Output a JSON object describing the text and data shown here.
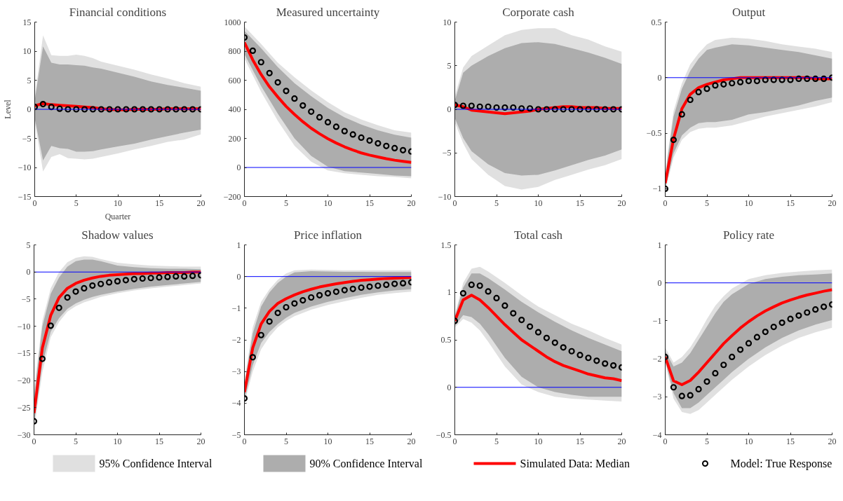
{
  "chart_data": [
    {
      "type": "line",
      "title": "Financial conditions",
      "xlabel": "Quarter",
      "ylabel": "Level",
      "xlim": [
        0,
        20
      ],
      "xticks": [
        0,
        5,
        10,
        15,
        20
      ],
      "ylim": [
        -15,
        15
      ],
      "yticks": [
        -15,
        -10,
        -5,
        0,
        5,
        10,
        15
      ],
      "grid": false,
      "legend": "bottom",
      "ref_lines": [
        {
          "axis": "y",
          "value": 0,
          "color": "#0000ff"
        }
      ],
      "series": [
        {
          "name": "95% Confidence Interval",
          "type": "area",
          "color": "#e0e0e0",
          "x": [
            0,
            1,
            2,
            3,
            4,
            5,
            6,
            7,
            8,
            10,
            12,
            14,
            16,
            18,
            20
          ],
          "values": [
            null,
            null,
            null,
            null,
            null,
            null,
            null,
            null,
            null,
            null,
            null,
            null,
            null,
            null,
            null
          ],
          "lower": [
            -2,
            -10.7,
            -8.2,
            -7.7,
            -8.4,
            -8.5,
            -8.6,
            -8.5,
            -8.2,
            -7.6,
            -6.9,
            -6.3,
            -5.6,
            -5.2,
            -4.3
          ],
          "upper": [
            2,
            12.7,
            9.3,
            9.2,
            9.2,
            9.4,
            9.2,
            8.8,
            8.2,
            7.5,
            6.8,
            6,
            5.3,
            4.5,
            3.9
          ]
        },
        {
          "name": "90% Confidence Interval",
          "type": "area",
          "color": "#adadad",
          "x": [
            0,
            1,
            2,
            3,
            4,
            5,
            6,
            7,
            8,
            10,
            12,
            14,
            16,
            18,
            20
          ],
          "values": [
            null,
            null,
            null,
            null,
            null,
            null,
            null,
            null,
            null,
            null,
            null,
            null,
            null,
            null,
            null
          ],
          "lower": [
            -1.5,
            -8.8,
            -6.3,
            -6.7,
            -6.8,
            -7.3,
            -7.3,
            -7.2,
            -6.9,
            -6.4,
            -5.9,
            -5.2,
            -4.6,
            -4,
            -3.5
          ],
          "upper": [
            1.5,
            10.8,
            8,
            7.7,
            7.7,
            7.6,
            7.5,
            7.2,
            7,
            6.3,
            5.6,
            4.8,
            4.2,
            3.7,
            3.2
          ]
        },
        {
          "name": "Simulated Data: Median",
          "color": "#ff0000",
          "x": [
            0,
            1,
            2,
            3,
            4,
            5,
            6,
            7,
            8,
            9,
            10,
            11,
            12,
            13,
            14,
            15,
            16,
            17,
            18,
            19,
            20
          ],
          "values": [
            0.6,
            1.0,
            0.8,
            0.7,
            0.6,
            0.5,
            0.4,
            0.3,
            0.1,
            0,
            -0.1,
            -0.1,
            0,
            0,
            0,
            0,
            0.1,
            0.1,
            0.1,
            0.1,
            0.1
          ]
        },
        {
          "name": "Model: True Response",
          "type": "scatter",
          "marker": "circle",
          "color": "#000000",
          "x": [
            0,
            1,
            2,
            3,
            4,
            5,
            6,
            7,
            8,
            9,
            10,
            11,
            12,
            13,
            14,
            15,
            16,
            17,
            18,
            19,
            20
          ],
          "values": [
            0.4,
            0.9,
            0.4,
            0.1,
            0,
            0,
            0,
            0,
            0,
            0,
            0,
            0,
            0,
            0,
            0,
            0,
            0,
            0,
            0,
            0,
            0
          ]
        }
      ]
    },
    {
      "type": "line",
      "title": "Measured uncertainty",
      "xlim": [
        0,
        20
      ],
      "xticks": [
        0,
        5,
        10,
        15,
        20
      ],
      "ylim": [
        -200,
        1000
      ],
      "yticks": [
        -200,
        0,
        200,
        400,
        600,
        800,
        1000
      ],
      "grid": false,
      "ref_lines": [
        {
          "axis": "y",
          "value": 0,
          "color": "#0000ff"
        }
      ],
      "series": [
        {
          "type": "area",
          "color": "#e0e0e0",
          "x": [
            0,
            2,
            4,
            6,
            8,
            10,
            12,
            14,
            16,
            18,
            20
          ],
          "values": [
            null,
            null,
            null,
            null,
            null,
            null,
            null,
            null,
            null,
            null,
            null
          ],
          "lower": [
            750,
            520,
            320,
            150,
            40,
            -20,
            -40,
            -50,
            -60,
            -65,
            -75
          ],
          "upper": [
            970,
            850,
            720,
            620,
            530,
            450,
            380,
            330,
            290,
            255,
            240
          ]
        },
        {
          "type": "area",
          "color": "#adadad",
          "x": [
            0,
            2,
            4,
            6,
            8,
            10,
            12,
            14,
            16,
            18,
            20
          ],
          "values": [
            null,
            null,
            null,
            null,
            null,
            null,
            null,
            null,
            null,
            null,
            null
          ],
          "lower": [
            780,
            560,
            370,
            200,
            80,
            5,
            -25,
            -35,
            -45,
            -55,
            -60
          ],
          "upper": [
            940,
            820,
            690,
            580,
            490,
            410,
            345,
            295,
            255,
            225,
            205
          ]
        },
        {
          "color": "#ff0000",
          "x": [
            0,
            1,
            2,
            3,
            4,
            5,
            6,
            7,
            8,
            9,
            10,
            11,
            12,
            13,
            14,
            15,
            16,
            17,
            18,
            19,
            20
          ],
          "values": [
            860,
            740,
            640,
            555,
            485,
            420,
            365,
            315,
            270,
            232,
            198,
            168,
            142,
            120,
            100,
            85,
            72,
            60,
            50,
            42,
            35
          ]
        },
        {
          "type": "scatter",
          "marker": "circle",
          "color": "#000000",
          "x": [
            0,
            1,
            2,
            3,
            4,
            5,
            6,
            7,
            8,
            9,
            10,
            11,
            12,
            13,
            14,
            15,
            16,
            17,
            18,
            19,
            20
          ],
          "values": [
            894,
            803,
            724,
            649,
            585,
            526,
            474,
            426,
            384,
            345,
            311,
            280,
            250,
            227,
            205,
            185,
            166,
            148,
            133,
            119,
            110
          ]
        }
      ]
    },
    {
      "type": "line",
      "title": "Corporate cash",
      "xlim": [
        0,
        20
      ],
      "xticks": [
        0,
        5,
        10,
        15,
        20
      ],
      "ylim": [
        -10,
        10
      ],
      "yticks": [
        -10,
        -5,
        0,
        5,
        10
      ],
      "grid": false,
      "ref_lines": [
        {
          "axis": "y",
          "value": 0,
          "color": "#0000ff"
        }
      ],
      "series": [
        {
          "type": "area",
          "color": "#e0e0e0",
          "x": [
            0,
            1,
            2,
            4,
            6,
            8,
            10,
            12,
            14,
            16,
            18,
            20
          ],
          "values": [
            null,
            null,
            null,
            null,
            null,
            null,
            null,
            null,
            null,
            null,
            null,
            null
          ],
          "lower": [
            -1.5,
            -3.9,
            -5.7,
            -7.5,
            -8.8,
            -9.2,
            -8.9,
            -8.1,
            -7.5,
            -6.9,
            -6.4,
            -5.7
          ],
          "upper": [
            1.5,
            4.8,
            6.1,
            7.3,
            8.5,
            9.1,
            9.3,
            9.3,
            8.5,
            8,
            7.2,
            6.6
          ]
        },
        {
          "type": "area",
          "color": "#adadad",
          "x": [
            0,
            1,
            2,
            4,
            6,
            8,
            10,
            12,
            14,
            16,
            18,
            20
          ],
          "values": [
            null,
            null,
            null,
            null,
            null,
            null,
            null,
            null,
            null,
            null,
            null,
            null
          ],
          "lower": [
            -1,
            -3.3,
            -4.8,
            -6.3,
            -7.3,
            -7.6,
            -7.5,
            -7,
            -6.4,
            -5.8,
            -5.3,
            -4.6
          ],
          "upper": [
            1,
            4.2,
            5,
            6.1,
            7,
            7.6,
            7.7,
            7.5,
            7,
            6.5,
            5.9,
            5.2
          ]
        },
        {
          "color": "#ff0000",
          "x": [
            0,
            1,
            2,
            3,
            4,
            5,
            6,
            7,
            8,
            9,
            10,
            11,
            12,
            13,
            14,
            15,
            16,
            17,
            18,
            19,
            20
          ],
          "values": [
            0.5,
            0.3,
            -0.1,
            -0.2,
            -0.3,
            -0.4,
            -0.5,
            -0.4,
            -0.3,
            -0.2,
            0,
            0.1,
            0.2,
            0.3,
            0.3,
            0.2,
            0.2,
            0.2,
            0.1,
            0.1,
            0.1
          ]
        },
        {
          "type": "scatter",
          "marker": "circle",
          "color": "#000000",
          "x": [
            0,
            1,
            2,
            3,
            4,
            5,
            6,
            7,
            8,
            9,
            10,
            11,
            12,
            13,
            14,
            15,
            16,
            17,
            18,
            19,
            20
          ],
          "values": [
            0.5,
            0.4,
            0.4,
            0.3,
            0.3,
            0.2,
            0.2,
            0.2,
            0.1,
            0.1,
            0,
            0,
            0,
            0,
            0,
            0,
            0,
            0,
            0,
            0,
            0
          ]
        }
      ]
    },
    {
      "type": "line",
      "title": "Output",
      "xlim": [
        0,
        20
      ],
      "xticks": [
        0,
        5,
        10,
        15,
        20
      ],
      "ylim": [
        -1.07,
        0.5
      ],
      "yticks": [
        -1,
        -0.5,
        0,
        0.5
      ],
      "grid": false,
      "ref_lines": [
        {
          "axis": "y",
          "value": 0,
          "color": "#0000ff"
        }
      ],
      "series": [
        {
          "type": "area",
          "color": "#e0e0e0",
          "x": [
            0,
            1,
            2,
            3,
            4,
            5,
            6,
            8,
            10,
            12,
            14,
            16,
            18,
            20
          ],
          "values": [
            null,
            null,
            null,
            null,
            null,
            null,
            null,
            null,
            null,
            null,
            null,
            null,
            null,
            null
          ],
          "lower": [
            -1.02,
            -0.72,
            -0.56,
            -0.49,
            -0.46,
            -0.45,
            -0.45,
            -0.43,
            -0.39,
            -0.35,
            -0.32,
            -0.29,
            -0.26,
            -0.22
          ],
          "upper": [
            -0.85,
            -0.3,
            -0.05,
            0.12,
            0.22,
            0.3,
            0.34,
            0.36,
            0.35,
            0.33,
            0.3,
            0.28,
            0.26,
            0.23
          ]
        },
        {
          "type": "area",
          "color": "#adadad",
          "x": [
            0,
            1,
            2,
            3,
            4,
            5,
            6,
            8,
            10,
            12,
            14,
            16,
            18,
            20
          ],
          "values": [
            null,
            null,
            null,
            null,
            null,
            null,
            null,
            null,
            null,
            null,
            null,
            null,
            null,
            null
          ],
          "lower": [
            -1.0,
            -0.68,
            -0.52,
            -0.45,
            -0.41,
            -0.4,
            -0.4,
            -0.38,
            -0.33,
            -0.31,
            -0.28,
            -0.25,
            -0.21,
            -0.18
          ],
          "upper": [
            -0.88,
            -0.35,
            -0.1,
            0.06,
            0.17,
            0.25,
            0.27,
            0.3,
            0.29,
            0.27,
            0.25,
            0.23,
            0.2,
            0.17
          ]
        },
        {
          "color": "#ff0000",
          "x": [
            0,
            1,
            2,
            3,
            4,
            5,
            6,
            7,
            8,
            9,
            10,
            11,
            12,
            13,
            14,
            15,
            16,
            17,
            18,
            19,
            20
          ],
          "values": [
            -0.95,
            -0.55,
            -0.28,
            -0.15,
            -0.09,
            -0.06,
            -0.04,
            -0.02,
            -0.01,
            0,
            0,
            0,
            0,
            0,
            0,
            0,
            0,
            0,
            -0.01,
            -0.01,
            -0.01
          ]
        },
        {
          "type": "scatter",
          "marker": "circle",
          "color": "#000000",
          "x": [
            0,
            1,
            2,
            3,
            4,
            5,
            6,
            7,
            8,
            9,
            10,
            11,
            12,
            13,
            14,
            15,
            16,
            17,
            18,
            19,
            20
          ],
          "values": [
            -1.0,
            -0.56,
            -0.33,
            -0.2,
            -0.13,
            -0.1,
            -0.07,
            -0.06,
            -0.05,
            -0.04,
            -0.03,
            -0.03,
            -0.02,
            -0.02,
            -0.02,
            -0.02,
            -0.01,
            -0.01,
            -0.01,
            -0.01,
            0
          ]
        }
      ]
    },
    {
      "type": "line",
      "title": "Shadow values",
      "xlim": [
        0,
        20
      ],
      "xticks": [
        0,
        5,
        10,
        15,
        20
      ],
      "ylim": [
        -30,
        5
      ],
      "yticks": [
        -30,
        -25,
        -20,
        -15,
        -10,
        -5,
        0,
        5
      ],
      "grid": false,
      "ref_lines": [
        {
          "axis": "y",
          "value": 0,
          "color": "#0000ff"
        }
      ],
      "series": [
        {
          "type": "area",
          "color": "#e0e0e0",
          "x": [
            0,
            1,
            2,
            3,
            4,
            5,
            6,
            7,
            8,
            10,
            12,
            14,
            16,
            18,
            20
          ],
          "values": [
            null,
            null,
            null,
            null,
            null,
            null,
            null,
            null,
            null,
            null,
            null,
            null,
            null,
            null,
            null
          ],
          "lower": [
            -29,
            -18.5,
            -12,
            -9.2,
            -7.3,
            -6.3,
            -5.6,
            -5.1,
            -4.6,
            -3.9,
            -3.4,
            -3.0,
            -2.7,
            -2.4,
            -2.1
          ],
          "upper": [
            -22,
            -9,
            -3,
            0,
            1.8,
            2.6,
            2.9,
            2.8,
            2.4,
            1.7,
            1.4,
            1.2,
            1.1,
            1,
            1
          ]
        },
        {
          "type": "area",
          "color": "#adadad",
          "x": [
            0,
            1,
            2,
            3,
            4,
            5,
            6,
            7,
            8,
            10,
            12,
            14,
            16,
            18,
            20
          ],
          "values": [
            null,
            null,
            null,
            null,
            null,
            null,
            null,
            null,
            null,
            null,
            null,
            null,
            null,
            null,
            null
          ],
          "lower": [
            -28,
            -17,
            -11,
            -8.5,
            -6.8,
            -5.8,
            -5.1,
            -4.6,
            -4.2,
            -3.6,
            -3.1,
            -2.7,
            -2.4,
            -2.1,
            -1.8
          ],
          "upper": [
            -23,
            -10,
            -4,
            -1,
            1,
            2,
            2.3,
            2.3,
            2.0,
            1.2,
            0.9,
            0.7,
            0.6,
            0.6,
            0.5
          ]
        },
        {
          "color": "#ff0000",
          "x": [
            0,
            1,
            2,
            3,
            4,
            5,
            6,
            7,
            8,
            9,
            10,
            11,
            12,
            13,
            14,
            15,
            16,
            17,
            18,
            19,
            20
          ],
          "values": [
            -26,
            -14,
            -8,
            -4.7,
            -3,
            -2.1,
            -1.5,
            -1.1,
            -0.8,
            -0.6,
            -0.5,
            -0.4,
            -0.3,
            -0.3,
            -0.2,
            -0.2,
            -0.1,
            -0.1,
            -0.1,
            0,
            0
          ]
        },
        {
          "type": "scatter",
          "marker": "circle",
          "color": "#000000",
          "x": [
            0,
            1,
            2,
            3,
            4,
            5,
            6,
            7,
            8,
            9,
            10,
            11,
            12,
            13,
            14,
            15,
            16,
            17,
            18,
            19,
            20
          ],
          "values": [
            -27.5,
            -16,
            -9.9,
            -6.6,
            -4.7,
            -3.6,
            -3.0,
            -2.5,
            -2.2,
            -1.9,
            -1.7,
            -1.5,
            -1.3,
            -1.2,
            -1.1,
            -1.0,
            -0.9,
            -0.8,
            -0.8,
            -0.7,
            -0.6
          ]
        }
      ]
    },
    {
      "type": "line",
      "title": "Price inflation",
      "xlim": [
        0,
        20
      ],
      "xticks": [
        0,
        5,
        10,
        15,
        20
      ],
      "ylim": [
        -5,
        1
      ],
      "yticks": [
        -5,
        -4,
        -3,
        -2,
        -1,
        0,
        1
      ],
      "grid": false,
      "ref_lines": [
        {
          "axis": "y",
          "value": 0,
          "color": "#0000ff"
        }
      ],
      "series": [
        {
          "type": "area",
          "color": "#e0e0e0",
          "x": [
            0,
            1,
            2,
            3,
            4,
            5,
            6,
            8,
            10,
            12,
            14,
            16,
            18,
            20
          ],
          "values": [
            null,
            null,
            null,
            null,
            null,
            null,
            null,
            null,
            null,
            null,
            null,
            null,
            null,
            null
          ],
          "lower": [
            -4,
            -3.0,
            -2.3,
            -1.9,
            -1.6,
            -1.4,
            -1.25,
            -1.05,
            -0.9,
            -0.78,
            -0.67,
            -0.58,
            -0.52,
            -0.48
          ],
          "upper": [
            -3.3,
            -1.6,
            -0.8,
            -0.4,
            -0.1,
            0.1,
            0.2,
            0.22,
            0.21,
            0.2,
            0.2,
            0.2,
            0.2,
            0.2
          ]
        },
        {
          "type": "area",
          "color": "#adadad",
          "x": [
            0,
            1,
            2,
            3,
            4,
            5,
            6,
            8,
            10,
            12,
            14,
            16,
            18,
            20
          ],
          "values": [
            null,
            null,
            null,
            null,
            null,
            null,
            null,
            null,
            null,
            null,
            null,
            null,
            null,
            null
          ],
          "lower": [
            -3.9,
            -2.8,
            -2.1,
            -1.75,
            -1.5,
            -1.3,
            -1.15,
            -0.95,
            -0.8,
            -0.68,
            -0.58,
            -0.5,
            -0.44,
            -0.4
          ],
          "upper": [
            -3.4,
            -1.8,
            -0.95,
            -0.5,
            -0.2,
            0,
            0.13,
            0.17,
            0.16,
            0.15,
            0.15,
            0.14,
            0.14,
            0.14
          ]
        },
        {
          "color": "#ff0000",
          "x": [
            0,
            1,
            2,
            3,
            4,
            5,
            6,
            7,
            8,
            9,
            10,
            11,
            12,
            13,
            14,
            15,
            16,
            17,
            18,
            19,
            20
          ],
          "values": [
            -3.65,
            -2.25,
            -1.5,
            -1.1,
            -0.85,
            -0.7,
            -0.58,
            -0.48,
            -0.4,
            -0.33,
            -0.28,
            -0.23,
            -0.19,
            -0.15,
            -0.12,
            -0.1,
            -0.08,
            -0.06,
            -0.05,
            -0.04,
            -0.03
          ]
        },
        {
          "type": "scatter",
          "marker": "circle",
          "color": "#000000",
          "x": [
            0,
            1,
            2,
            3,
            4,
            5,
            6,
            7,
            8,
            9,
            10,
            11,
            12,
            13,
            14,
            15,
            16,
            17,
            18,
            19,
            20
          ],
          "values": [
            -3.85,
            -2.55,
            -1.85,
            -1.42,
            -1.15,
            -0.97,
            -0.85,
            -0.75,
            -0.66,
            -0.59,
            -0.53,
            -0.48,
            -0.43,
            -0.39,
            -0.35,
            -0.32,
            -0.29,
            -0.26,
            -0.23,
            -0.21,
            -0.18
          ]
        }
      ]
    },
    {
      "type": "line",
      "title": "Total cash",
      "xlim": [
        0,
        20
      ],
      "xticks": [
        0,
        5,
        10,
        15,
        20
      ],
      "ylim": [
        -0.5,
        1.5
      ],
      "yticks": [
        -0.5,
        0,
        0.5,
        1,
        1.5
      ],
      "grid": false,
      "ref_lines": [
        {
          "axis": "y",
          "value": 0,
          "color": "#0000ff"
        }
      ],
      "series": [
        {
          "type": "area",
          "color": "#e0e0e0",
          "x": [
            0,
            1,
            2,
            3,
            4,
            6,
            8,
            10,
            12,
            14,
            16,
            18,
            20
          ],
          "values": [
            null,
            null,
            null,
            null,
            null,
            null,
            null,
            null,
            null,
            null,
            null,
            null,
            null
          ],
          "lower": [
            0.63,
            0.72,
            0.68,
            0.6,
            0.48,
            0.22,
            0.03,
            -0.05,
            -0.1,
            -0.12,
            -0.13,
            -0.14,
            -0.15
          ],
          "upper": [
            0.76,
            1.1,
            1.25,
            1.27,
            1.22,
            1.1,
            0.97,
            0.85,
            0.76,
            0.67,
            0.6,
            0.52,
            0.45
          ]
        },
        {
          "type": "area",
          "color": "#adadad",
          "x": [
            0,
            1,
            2,
            3,
            4,
            6,
            8,
            10,
            12,
            14,
            16,
            18,
            20
          ],
          "values": [
            null,
            null,
            null,
            null,
            null,
            null,
            null,
            null,
            null,
            null,
            null,
            null,
            null
          ],
          "lower": [
            0.65,
            0.76,
            0.74,
            0.67,
            0.56,
            0.31,
            0.11,
            0,
            -0.05,
            -0.08,
            -0.1,
            -0.1,
            -0.1
          ],
          "upper": [
            0.74,
            1.05,
            1.2,
            1.2,
            1.15,
            1.03,
            0.9,
            0.79,
            0.69,
            0.6,
            0.52,
            0.45,
            0.38
          ]
        },
        {
          "color": "#ff0000",
          "x": [
            0,
            1,
            2,
            3,
            4,
            5,
            6,
            7,
            8,
            9,
            10,
            11,
            12,
            13,
            14,
            15,
            16,
            17,
            18,
            19,
            20
          ],
          "values": [
            0.7,
            0.92,
            0.97,
            0.92,
            0.84,
            0.75,
            0.66,
            0.58,
            0.5,
            0.44,
            0.38,
            0.32,
            0.27,
            0.23,
            0.2,
            0.17,
            0.14,
            0.12,
            0.1,
            0.09,
            0.07
          ]
        },
        {
          "type": "scatter",
          "marker": "circle",
          "color": "#000000",
          "x": [
            0,
            1,
            2,
            3,
            4,
            5,
            6,
            7,
            8,
            9,
            10,
            11,
            12,
            13,
            14,
            15,
            16,
            17,
            18,
            19,
            20
          ],
          "values": [
            0.7,
            0.99,
            1.08,
            1.07,
            1.01,
            0.94,
            0.86,
            0.78,
            0.71,
            0.64,
            0.58,
            0.52,
            0.47,
            0.42,
            0.38,
            0.34,
            0.31,
            0.28,
            0.25,
            0.23,
            0.21
          ]
        }
      ]
    },
    {
      "type": "line",
      "title": "Policy rate",
      "xlim": [
        0,
        20
      ],
      "xticks": [
        0,
        5,
        10,
        15,
        20
      ],
      "ylim": [
        -4,
        1
      ],
      "yticks": [
        -4,
        -3,
        -2,
        -1,
        0,
        1
      ],
      "grid": false,
      "ref_lines": [
        {
          "axis": "y",
          "value": 0,
          "color": "#0000ff"
        }
      ],
      "series": [
        {
          "type": "area",
          "color": "#e0e0e0",
          "x": [
            0,
            1,
            2,
            3,
            4,
            5,
            6,
            7,
            8,
            10,
            12,
            14,
            16,
            18,
            20
          ],
          "values": [
            null,
            null,
            null,
            null,
            null,
            null,
            null,
            null,
            null,
            null,
            null,
            null,
            null,
            null,
            null
          ],
          "lower": [
            -2.1,
            -3.05,
            -3.4,
            -3.45,
            -3.35,
            -3.15,
            -2.95,
            -2.75,
            -2.55,
            -2.2,
            -1.9,
            -1.65,
            -1.45,
            -1.3,
            -1.18
          ],
          "upper": [
            -1.7,
            -2.1,
            -1.95,
            -1.7,
            -1.35,
            -0.95,
            -0.6,
            -0.35,
            -0.15,
            0.1,
            0.2,
            0.26,
            0.3,
            0.33,
            0.35
          ]
        },
        {
          "type": "area",
          "color": "#adadad",
          "x": [
            0,
            1,
            2,
            3,
            4,
            5,
            6,
            7,
            8,
            10,
            12,
            14,
            16,
            18,
            20
          ],
          "values": [
            null,
            null,
            null,
            null,
            null,
            null,
            null,
            null,
            null,
            null,
            null,
            null,
            null,
            null,
            null
          ],
          "lower": [
            -2.05,
            -2.9,
            -3.3,
            -3.3,
            -3.15,
            -2.95,
            -2.75,
            -2.55,
            -2.35,
            -2.0,
            -1.7,
            -1.45,
            -1.25,
            -1.1,
            -0.98
          ],
          "upper": [
            -1.8,
            -2.2,
            -2.1,
            -1.85,
            -1.5,
            -1.15,
            -0.8,
            -0.5,
            -0.3,
            -0.03,
            0.1,
            0.16,
            0.2,
            0.22,
            0.25
          ]
        },
        {
          "color": "#ff0000",
          "x": [
            0,
            1,
            2,
            3,
            4,
            5,
            6,
            7,
            8,
            9,
            10,
            11,
            12,
            13,
            14,
            15,
            16,
            17,
            18,
            19,
            20
          ],
          "values": [
            -1.95,
            -2.58,
            -2.68,
            -2.57,
            -2.35,
            -2.1,
            -1.85,
            -1.6,
            -1.39,
            -1.19,
            -1.02,
            -0.87,
            -0.74,
            -0.63,
            -0.53,
            -0.45,
            -0.38,
            -0.32,
            -0.27,
            -0.22,
            -0.18
          ]
        },
        {
          "type": "scatter",
          "marker": "circle",
          "color": "#000000",
          "x": [
            0,
            1,
            2,
            3,
            4,
            5,
            6,
            7,
            8,
            9,
            10,
            11,
            12,
            13,
            14,
            15,
            16,
            17,
            18,
            19,
            20
          ],
          "values": [
            -1.95,
            -2.75,
            -2.98,
            -2.96,
            -2.8,
            -2.6,
            -2.38,
            -2.16,
            -1.95,
            -1.76,
            -1.59,
            -1.43,
            -1.29,
            -1.16,
            -1.05,
            -0.95,
            -0.86,
            -0.78,
            -0.7,
            -0.63,
            -0.57
          ]
        }
      ]
    }
  ]
}
